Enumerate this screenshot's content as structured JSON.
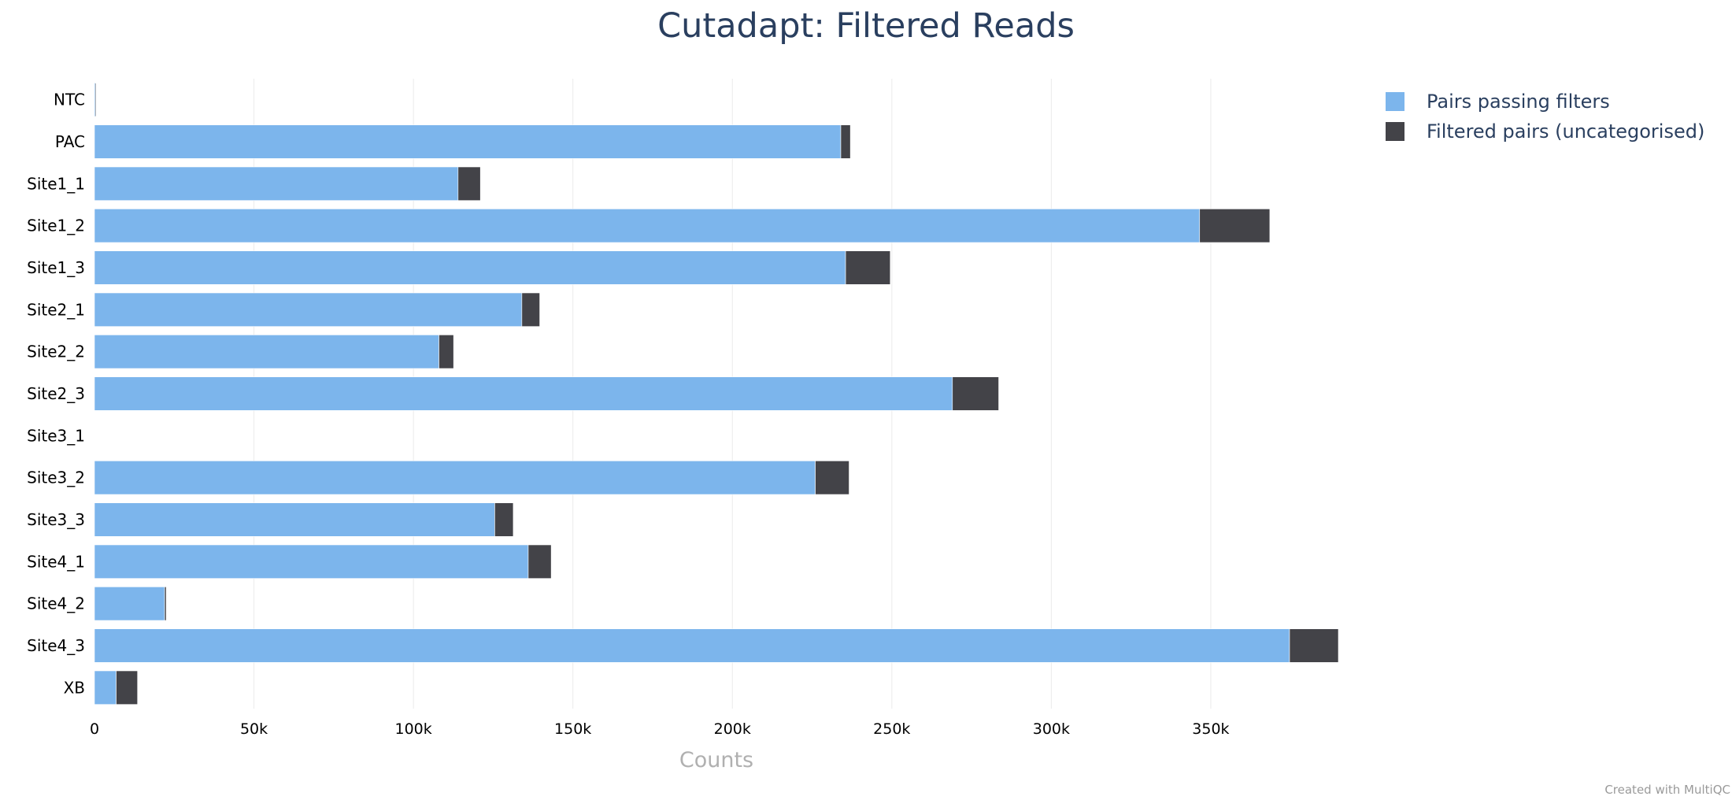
{
  "chart_data": {
    "type": "bar",
    "orientation": "horizontal",
    "stacked": true,
    "title": "Cutadapt: Filtered Reads",
    "xlabel": "Counts",
    "ylabel": "",
    "xlim": [
      0,
      390000
    ],
    "xticks": [
      0,
      50000,
      100000,
      150000,
      200000,
      250000,
      300000,
      350000
    ],
    "xtick_labels": [
      "0",
      "50k",
      "100k",
      "150k",
      "200k",
      "250k",
      "300k",
      "350k"
    ],
    "grid": "vertical",
    "legend_position": "top-right",
    "categories": [
      "NTC",
      "PAC",
      "Site1_1",
      "Site1_2",
      "Site1_3",
      "Site2_1",
      "Site2_2",
      "Site2_3",
      "Site3_1",
      "Site3_2",
      "Site3_3",
      "Site4_1",
      "Site4_2",
      "Site4_3",
      "XB"
    ],
    "series": [
      {
        "name": "Pairs passing filters",
        "color": "#7cb5ec",
        "values": [
          300,
          234000,
          114000,
          346500,
          235500,
          134000,
          108000,
          269000,
          0,
          226000,
          125500,
          136000,
          22000,
          374700,
          6800
        ]
      },
      {
        "name": "Filtered pairs (uncategorised)",
        "color": "#434348",
        "values": [
          200,
          3000,
          7000,
          22000,
          14000,
          5600,
          4600,
          14500,
          0,
          10600,
          5800,
          7200,
          500,
          15300,
          6700
        ]
      }
    ]
  },
  "footer": {
    "credit": "Created with MultiQC"
  }
}
